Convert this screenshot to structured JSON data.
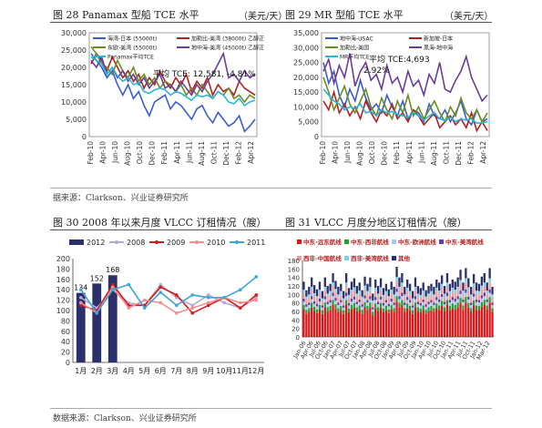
{
  "section_top": {
    "fig28_title": "图 28 Panamax 型船 TCE 水平",
    "fig28_unit": "（美元/天）",
    "fig29_title": "图 29 MR 型船 TCE 水平",
    "fig29_unit": "（美元/天）",
    "source": "据来源：Clarkson、兴业证券研究所"
  },
  "section_bottom": {
    "fig30_title": "图 30 2008 年以来月度 VLCC 订租情况（艘）",
    "fig31_title": "图 31 VLCC 月度分地区订租情况（艘）",
    "source": "数据来源：Clarkson、兴业证券研究所"
  },
  "chart_data": [
    {
      "id": "fig28",
      "type": "line",
      "x_labels": [
        "Feb-10",
        "Apr-10",
        "Jun-10",
        "Aug-10",
        "Oct-10",
        "Dec-10",
        "Feb-11",
        "Apr-11",
        "Jun-11",
        "Aug-11",
        "Oct-11",
        "Dec-11",
        "Feb-12",
        "Apr-12"
      ],
      "yticks": [
        "0",
        "5,000",
        "10,000",
        "15,000",
        "20,000",
        "25,000",
        "30,000"
      ],
      "ylim": [
        0,
        30000
      ],
      "annotation": "平均 TCE: 12,581, -4.81%",
      "series": [
        {
          "name": "海湾-日本 (55000t)",
          "color": "#3a5fcd",
          "values": [
            24000,
            22000,
            20000,
            17000,
            19000,
            15000,
            12000,
            15000,
            11000,
            13000,
            9000,
            6000,
            10000,
            11000,
            12000,
            8000,
            10000,
            9000,
            7000,
            5000,
            8000,
            9000,
            6000,
            4000,
            7000,
            5000,
            3000,
            4000,
            6000,
            1500,
            3000,
            5000
          ]
        },
        {
          "name": "加勒比-美湾 (38000t) 乙醇正",
          "color": "#b22222",
          "values": [
            21000,
            24000,
            22000,
            19000,
            23000,
            20000,
            17000,
            19000,
            16000,
            18000,
            14000,
            17000,
            15000,
            19000,
            16000,
            14000,
            17000,
            15000,
            18000,
            13000,
            16000,
            14000,
            17000,
            12000,
            15000,
            13000,
            14000,
            12000,
            16000,
            14000,
            13000,
            12000
          ]
        },
        {
          "name": "东欧-美湾 (55000t)",
          "color": "#6b8e23",
          "values": [
            26000,
            24000,
            21000,
            20000,
            18000,
            22000,
            19000,
            17000,
            20000,
            16000,
            18000,
            15000,
            17000,
            14000,
            16000,
            15000,
            13000,
            15000,
            12000,
            14000,
            12000,
            15000,
            13000,
            11000,
            13000,
            12000,
            14000,
            11000,
            12000,
            10000,
            12000,
            11000
          ]
        },
        {
          "name": "地中海-美湾 (45000t) 乙醇正",
          "color": "#6a3d9a",
          "values": [
            22000,
            20000,
            23000,
            18000,
            20000,
            17000,
            19000,
            16000,
            18000,
            15000,
            17000,
            14000,
            16000,
            18000,
            14000,
            15000,
            13000,
            16000,
            14000,
            12000,
            15000,
            13000,
            16000,
            18000,
            21000,
            24000,
            17000,
            18000,
            16000,
            19000,
            17000,
            18000
          ]
        },
        {
          "name": "Panamax平均TCE",
          "color": "#2bb5d8",
          "values": [
            23000,
            22000,
            21000,
            18000,
            20000,
            17500,
            16000,
            17000,
            15000,
            15500,
            13000,
            12500,
            13500,
            14000,
            13500,
            12000,
            13000,
            12500,
            11500,
            10500,
            12000,
            11500,
            12000,
            11000,
            13000,
            12000,
            10000,
            9500,
            11000,
            9000,
            10000,
            10500
          ]
        }
      ]
    },
    {
      "id": "fig29",
      "type": "line",
      "x_labels": [
        "Feb-10",
        "Apr-10",
        "Jun-10",
        "Aug-10",
        "Oct-10",
        "Dec-10",
        "Feb-11",
        "Apr-11",
        "Jun-11",
        "Aug-11",
        "Oct-11",
        "Dec-11",
        "Feb-12",
        "Apr-12"
      ],
      "yticks": [
        "0",
        "5,000",
        "10,000",
        "15,000",
        "20,000",
        "25,000",
        "30,000",
        "35,000"
      ],
      "ylim": [
        0,
        35000
      ],
      "annotation": "平均 TCE:4,693\n2.92%",
      "series": [
        {
          "name": "地中海-USAC",
          "color": "#3a5fcd",
          "values": [
            25000,
            18000,
            22000,
            14000,
            10000,
            16000,
            12000,
            19000,
            13000,
            9000,
            11000,
            8000,
            14000,
            10000,
            7000,
            12000,
            6000,
            9000,
            8000,
            5000,
            11000,
            7000,
            6000,
            9000,
            5000,
            8000,
            12000,
            6000,
            4000,
            9000,
            5000,
            6000
          ]
        },
        {
          "name": "新加坡-日本",
          "color": "#b22222",
          "values": [
            12000,
            9000,
            15000,
            8000,
            11000,
            7000,
            10000,
            6000,
            12000,
            8000,
            5000,
            9000,
            7000,
            11000,
            6000,
            8000,
            5000,
            9000,
            7000,
            4000,
            6000,
            8000,
            3000,
            5000,
            7000,
            4000,
            6000,
            3000,
            8000,
            2000,
            5000,
            2000
          ]
        },
        {
          "name": "加勒比-美国",
          "color": "#6b8e23",
          "values": [
            20000,
            15000,
            9000,
            13000,
            17000,
            11000,
            8000,
            12000,
            16000,
            10000,
            7000,
            13000,
            9000,
            6000,
            12000,
            8000,
            14000,
            7000,
            10000,
            6000,
            9000,
            12000,
            8000,
            5000,
            10000,
            7000,
            13000,
            8000,
            6000,
            9000,
            5000,
            8000
          ]
        },
        {
          "name": "黑海-地中海",
          "color": "#6a3d9a",
          "values": [
            22000,
            26000,
            18000,
            24000,
            20000,
            28000,
            17000,
            22000,
            25000,
            19000,
            21000,
            16000,
            24000,
            18000,
            20000,
            15000,
            22000,
            17000,
            19000,
            14000,
            21000,
            18000,
            25000,
            16000,
            15000,
            19000,
            22000,
            27000,
            20000,
            16000,
            12000,
            14000
          ]
        },
        {
          "name": "MR平均TCE",
          "color": "#2bb5d8",
          "values": [
            16000,
            14000,
            12000,
            11000,
            9000,
            10000,
            9500,
            11000,
            8000,
            8500,
            7000,
            9000,
            8000,
            8500,
            7500,
            7000,
            6500,
            8000,
            7000,
            5500,
            7000,
            8000,
            6000,
            5500,
            6500,
            5000,
            6000,
            5500,
            6000,
            4500,
            4693,
            5000
          ]
        }
      ]
    },
    {
      "id": "fig30",
      "type": "bar",
      "categories": [
        "1月",
        "2月",
        "3月",
        "4月",
        "5月",
        "6月",
        "7月",
        "8月",
        "9月",
        "10月",
        "11月",
        "12月"
      ],
      "yticks": [
        "0",
        "20",
        "40",
        "60",
        "80",
        "100",
        "120",
        "140",
        "160",
        "180",
        "200"
      ],
      "ylim": [
        0,
        200
      ],
      "bar_series": {
        "name": "2012",
        "color": "#2b2f6b",
        "values": [
          134,
          152,
          168
        ],
        "labels": [
          "134",
          "152",
          "168"
        ]
      },
      "series": [
        {
          "name": "2008",
          "color": "#b7a9d6",
          "values": [
            125,
            105,
            140,
            115,
            110,
            150,
            125,
            110,
            130,
            115,
            105,
            125
          ]
        },
        {
          "name": "2009",
          "color": "#d7191c",
          "values": [
            110,
            100,
            150,
            110,
            110,
            145,
            130,
            95,
            110,
            125,
            105,
            130
          ]
        },
        {
          "name": "2010",
          "color": "#f28e8e",
          "values": [
            115,
            95,
            145,
            105,
            120,
            115,
            95,
            105,
            115,
            125,
            115,
            120
          ]
        },
        {
          "name": "2011",
          "color": "#3fa7d6",
          "values": [
            140,
            95,
            140,
            150,
            105,
            135,
            110,
            130,
            125,
            125,
            140,
            165
          ]
        }
      ]
    },
    {
      "id": "fig31",
      "type": "bar",
      "stacked": true,
      "x_labels": [
        "Jan-06",
        "Apr-06",
        "Jul-06",
        "Oct-06",
        "Jan-07",
        "Apr-07",
        "Jul-07",
        "Oct-07",
        "Jan-08",
        "Apr-08",
        "Jul-08",
        "Oct-08",
        "Jan-09",
        "Apr-09",
        "Jul-09",
        "Oct-09",
        "Jan-10",
        "Apr-10",
        "Jul-10",
        "Oct-10",
        "Jan-11",
        "Apr-11",
        "Jul-11",
        "Oct-11",
        "Jan-12",
        "Mar-12"
      ],
      "yticks": [
        "0",
        "20",
        "40",
        "60",
        "80",
        "100",
        "120",
        "140",
        "160",
        "180"
      ],
      "ylim": [
        0,
        180
      ],
      "legend": [
        {
          "name": "中东-远东航线",
          "color": "#d7191c"
        },
        {
          "name": "中东-西非航线",
          "color": "#2a9d3a"
        },
        {
          "name": "中东-欧洲航线",
          "color": "#a8c8e8"
        },
        {
          "name": "中东-美湾航线",
          "color": "#6a3d9a"
        },
        {
          "name": "西非-中国航线",
          "color": "#f29f9f"
        },
        {
          "name": "西非-美湾航线",
          "color": "#7fd0e8"
        },
        {
          "name": "其他",
          "color": "#2b2f6b"
        }
      ],
      "totals": [
        130,
        110,
        118,
        140,
        122,
        112,
        130,
        108,
        140,
        120,
        125,
        150,
        132,
        118,
        125,
        108,
        150,
        115,
        130,
        138,
        120,
        128,
        110,
        142,
        125,
        140,
        102,
        135,
        120,
        138,
        115,
        125,
        112,
        130,
        118,
        165,
        140,
        150,
        118,
        135,
        125,
        108,
        140,
        120,
        115,
        128,
        110,
        120,
        125,
        118,
        135,
        128,
        145,
        120,
        150,
        125,
        135,
        130,
        140,
        158,
        128,
        162,
        138,
        118,
        148,
        128,
        125,
        142,
        150,
        128,
        162,
        118
      ]
    }
  ]
}
